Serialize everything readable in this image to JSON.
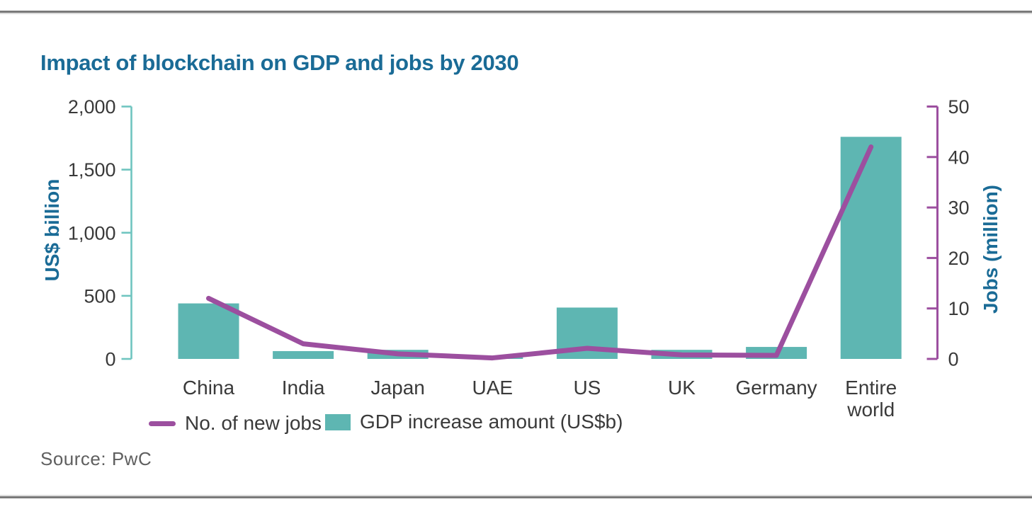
{
  "page": {
    "title": "Impact of blockchain on GDP and jobs by 2030",
    "source": "Source: PwC"
  },
  "legend": {
    "items": [
      {
        "label": "No. of new jobs",
        "swatch": "line",
        "color": "#9C4F9F"
      },
      {
        "label": "GDP increase amount (US$b)",
        "swatch": "square",
        "color": "#5EB6B2"
      }
    ]
  },
  "colors": {
    "title_blue": "#1A6B96",
    "bar_teal": "#5EB6B2",
    "left_axis_teal": "#6FC5C0",
    "line_purple": "#9C4F9F",
    "tick_text": "#3A3A3A",
    "source_gray": "#5F5F5F",
    "rule_gray": "#7A7A7A"
  },
  "chart_data": {
    "type": "bar",
    "subtype": "combo bar + line, dual y-axes, no gridlines",
    "title": "Impact of blockchain on GDP and jobs by 2030",
    "categories": [
      "China",
      "India",
      "Japan",
      "UAE",
      "US",
      "UK",
      "Germany",
      "Entire world"
    ],
    "series": [
      {
        "name": "GDP increase amount (US$b)",
        "type": "bar",
        "axis": "left",
        "color": "#5EB6B2",
        "values": [
          440,
          62,
          72,
          21,
          407,
          72,
          95,
          1760
        ]
      },
      {
        "name": "No. of new jobs",
        "type": "line",
        "axis": "right",
        "color": "#9C4F9F",
        "values": [
          12,
          3,
          1,
          0.2,
          2.1,
          0.8,
          0.7,
          42
        ]
      }
    ],
    "left_axis": {
      "title": "US$ billion",
      "range": [
        0,
        2000
      ],
      "tick_values": [
        0,
        500,
        1000,
        1500,
        2000
      ],
      "tick_labels": [
        "0",
        "500",
        "1,000",
        "1,500",
        "2,000"
      ],
      "color": "#6FC5C0"
    },
    "right_axis": {
      "title": "Jobs (million)",
      "range": [
        0,
        50
      ],
      "tick_values": [
        0,
        10,
        20,
        30,
        40,
        50
      ],
      "tick_labels": [
        "0",
        "10",
        "20",
        "30",
        "40",
        "50"
      ],
      "color": "#9C4F9F"
    },
    "grid": false,
    "legend_position": "bottom",
    "source": "Source: PwC"
  }
}
